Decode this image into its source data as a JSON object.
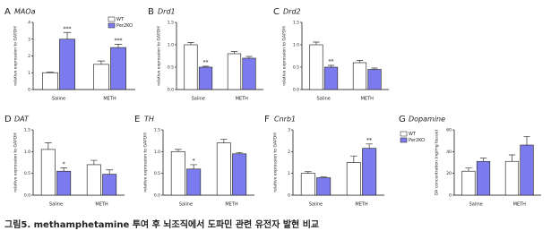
{
  "chart_data": [
    {
      "type": "bar",
      "panel_label": "A",
      "title": "MAOa",
      "categories": [
        "Saline",
        "METH"
      ],
      "y_label": "relative expression to GAPDH",
      "ylim": [
        0,
        4
      ],
      "yticks": [
        0,
        1,
        2,
        3,
        4
      ],
      "legend": "top-right",
      "series": [
        {
          "name": "WT",
          "color": "#ffffff",
          "values": [
            1.0,
            1.5
          ],
          "errors": [
            0.05,
            0.2
          ],
          "significance": [
            null,
            null
          ]
        },
        {
          "name": "Per2KO",
          "color": "#7b7bef",
          "values": [
            3.0,
            2.5
          ],
          "errors": [
            0.4,
            0.2
          ],
          "significance": [
            "***",
            "***"
          ]
        }
      ]
    },
    {
      "type": "bar",
      "panel_label": "B",
      "title": "Drd1",
      "categories": [
        "Saline",
        "METH"
      ],
      "y_label": "relative expression to GAPDH",
      "ylim": [
        0,
        1.5
      ],
      "yticks": [
        {
          "value": 0,
          "label": "0.0"
        },
        {
          "value": 0.5,
          "label": "0.5"
        },
        {
          "value": 1,
          "label": "1.0"
        },
        {
          "value": 1.5,
          "label": "1.5"
        }
      ],
      "series": [
        {
          "color": "#ffffff",
          "values": [
            1.0,
            0.8
          ],
          "errors": [
            0.05,
            0.05
          ],
          "significance": [
            null,
            null
          ]
        },
        {
          "color": "#7b7bef",
          "values": [
            0.5,
            0.7
          ],
          "errors": [
            0.02,
            0.04
          ],
          "significance": [
            "**",
            null
          ]
        }
      ]
    },
    {
      "type": "bar",
      "panel_label": "C",
      "title": "Drd2",
      "categories": [
        "Saline",
        "METH"
      ],
      "y_label": "relative expression to GAPDH",
      "ylim": [
        0,
        1.5
      ],
      "yticks": [
        {
          "value": 0,
          "label": "0.0"
        },
        {
          "value": 0.5,
          "label": "0.5"
        },
        {
          "value": 1,
          "label": "1.0"
        },
        {
          "value": 1.5,
          "label": "1.5"
        }
      ],
      "series": [
        {
          "color": "#ffffff",
          "values": [
            1.0,
            0.6
          ],
          "errors": [
            0.06,
            0.05
          ],
          "significance": [
            null,
            null
          ]
        },
        {
          "color": "#7b7bef",
          "values": [
            0.5,
            0.45
          ],
          "errors": [
            0.04,
            0.03
          ],
          "significance": [
            "**",
            null
          ]
        }
      ]
    },
    {
      "type": "bar",
      "panel_label": "D",
      "title": "DAT",
      "categories": [
        "Saline",
        "METH"
      ],
      "y_label": "relative expression to GAPDH",
      "ylim": [
        0,
        1.5
      ],
      "yticks": [
        {
          "value": 0,
          "label": "0.0"
        },
        {
          "value": 0.5,
          "label": "0.5"
        },
        {
          "value": 1,
          "label": "1.0"
        },
        {
          "value": 1.5,
          "label": "1.5"
        }
      ],
      "series": [
        {
          "color": "#ffffff",
          "values": [
            1.05,
            0.7
          ],
          "errors": [
            0.15,
            0.1
          ],
          "significance": [
            null,
            null
          ]
        },
        {
          "color": "#7b7bef",
          "values": [
            0.55,
            0.48
          ],
          "errors": [
            0.08,
            0.1
          ],
          "significance": [
            "*",
            null
          ]
        }
      ]
    },
    {
      "type": "bar",
      "panel_label": "E",
      "title": "TH",
      "categories": [
        "Saline",
        "METH"
      ],
      "y_label": "relative expression to GAPDH",
      "ylim": [
        0,
        1.5
      ],
      "yticks": [
        {
          "value": 0,
          "label": "0.0"
        },
        {
          "value": 0.5,
          "label": "0.5"
        },
        {
          "value": 1,
          "label": "1.0"
        },
        {
          "value": 1.5,
          "label": "1.5"
        }
      ],
      "series": [
        {
          "color": "#ffffff",
          "values": [
            1.0,
            1.2
          ],
          "errors": [
            0.05,
            0.08
          ],
          "significance": [
            null,
            null
          ]
        },
        {
          "color": "#7b7bef",
          "values": [
            0.6,
            0.95
          ],
          "errors": [
            0.1,
            0.03
          ],
          "significance": [
            "*",
            null
          ]
        }
      ]
    },
    {
      "type": "bar",
      "panel_label": "F",
      "title": "Cnrb1",
      "categories": [
        "Saline",
        "METH"
      ],
      "y_label": "relative expression to GAPDH",
      "ylim": [
        0,
        3
      ],
      "yticks": [
        0,
        1,
        2,
        3
      ],
      "series": [
        {
          "color": "#ffffff",
          "values": [
            1.0,
            1.5
          ],
          "errors": [
            0.08,
            0.3
          ],
          "significance": [
            null,
            null
          ]
        },
        {
          "color": "#7b7bef",
          "values": [
            0.8,
            2.15
          ],
          "errors": [
            0.04,
            0.2
          ],
          "significance": [
            null,
            "**"
          ]
        }
      ]
    },
    {
      "type": "bar",
      "panel_label": "G",
      "title": "Dopamine",
      "categories": [
        "Saline",
        "METH"
      ],
      "y_label": "DA concentration (ng/mg tissue)",
      "ylim": [
        0,
        60
      ],
      "yticks": [
        0,
        20,
        40,
        60
      ],
      "legend": "left",
      "series": [
        {
          "name": "WT",
          "color": "#ffffff",
          "values": [
            22,
            31
          ],
          "errors": [
            3,
            6
          ],
          "significance": [
            null,
            null
          ]
        },
        {
          "name": "Per2KO",
          "color": "#7b7bef",
          "values": [
            31,
            46
          ],
          "errors": [
            3,
            8
          ],
          "significance": [
            null,
            null
          ]
        }
      ]
    }
  ],
  "caption": "그림5. methamphetamine 투여 후 뇌조직에서 도파민 관련 유전자 발현 비교"
}
